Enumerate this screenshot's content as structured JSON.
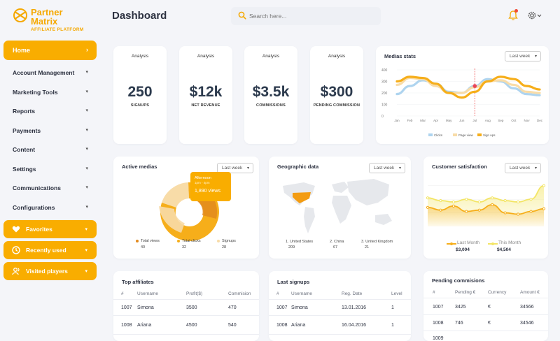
{
  "logo": {
    "line1": "Partner",
    "line2": "Matrix",
    "sub": "AFFILIATE PLATFORM"
  },
  "nav": {
    "home": "Home",
    "items": [
      "Account Management",
      "Marketing Tools",
      "Reports",
      "Payments",
      "Content",
      "Settings",
      "Communications",
      "Configurations"
    ],
    "highlighted": [
      "Favorites",
      "Recently used",
      "Visited players"
    ]
  },
  "header": {
    "title": "Dashboard",
    "search_placeholder": "Search here..."
  },
  "stats": [
    {
      "label": "Analysis",
      "value": "250",
      "sub": "SIGNUPS"
    },
    {
      "label": "Analysis",
      "value": "$12k",
      "sub": "NET REVENUE"
    },
    {
      "label": "Analysis",
      "value": "$3.5k",
      "sub": "COMMISSIONS"
    },
    {
      "label": "Analysis",
      "value": "$300",
      "sub": "PENDING COMMISSION"
    }
  ],
  "medias_stats": {
    "title": "Medias stats",
    "filter": "Last week",
    "chart_data": {
      "type": "line",
      "categories": [
        "Jan",
        "Feb",
        "Mar",
        "Apr",
        "May",
        "Jun",
        "Jul",
        "Aug",
        "Sep",
        "Oct",
        "Nov",
        "Dec"
      ],
      "yticks": [
        0,
        100,
        200,
        300,
        400
      ],
      "ylim": [
        0,
        400
      ],
      "series": [
        {
          "name": "Clicks",
          "color": "#aed4ef",
          "values": [
            190,
            260,
            310,
            280,
            210,
            200,
            260,
            320,
            300,
            240,
            190,
            180
          ]
        },
        {
          "name": "Page view",
          "color": "#f8dca8",
          "values": [
            270,
            330,
            320,
            260,
            200,
            200,
            250,
            300,
            310,
            270,
            210,
            200
          ]
        },
        {
          "name": "Sign ups",
          "color": "#f6ae1a",
          "values": [
            300,
            340,
            330,
            280,
            200,
            160,
            210,
            300,
            340,
            320,
            260,
            230
          ]
        }
      ]
    }
  },
  "active_medias": {
    "title": "Active medias",
    "filter": "Last week",
    "tooltip": {
      "time": "Afternoon",
      "range": "1pm - 4pm",
      "value": "1,890 views"
    },
    "legend": [
      {
        "label": "Total views",
        "value": "40",
        "color": "#e28a1d"
      },
      {
        "label": "Total clicks",
        "value": "32",
        "color": "#f6ae1a"
      },
      {
        "label": "Signups",
        "value": "28",
        "color": "#f8dca8"
      }
    ]
  },
  "geographic": {
    "title": "Geographic data",
    "filter": "Last week",
    "legend": [
      {
        "label": "1. United States",
        "value": "209"
      },
      {
        "label": "2. China",
        "value": "67"
      },
      {
        "label": "3. United Kingdom",
        "value": "21"
      }
    ]
  },
  "satisfaction": {
    "title": "Customer satisfaction",
    "filter": "Last week",
    "last_month_label": "Last Month",
    "last_month_value": "$3,004",
    "this_month_label": "This Month",
    "this_month_value": "$4,504",
    "chart_data": {
      "type": "area",
      "series": [
        {
          "name": "Last Month",
          "color": "#f6ae1a",
          "values": [
            48,
            44,
            50,
            42,
            44,
            52,
            40,
            38,
            42,
            46
          ]
        },
        {
          "name": "This Month",
          "color": "#f3e566",
          "values": [
            62,
            58,
            56,
            60,
            56,
            62,
            58,
            56,
            60,
            80
          ]
        }
      ]
    }
  },
  "top_affiliates": {
    "title": "Top affiliates",
    "columns": [
      "#",
      "Username",
      "Profit($)",
      "Commision"
    ],
    "rows": [
      [
        "1007",
        "Simona",
        "3500",
        "470"
      ],
      [
        "1008",
        "Ariana",
        "4500",
        "540"
      ]
    ]
  },
  "last_signups": {
    "title": "Last signups",
    "columns": [
      "#",
      "Username",
      "Reg. Date",
      "Level"
    ],
    "rows": [
      [
        "1007",
        "Simona",
        "13.01.2016",
        "1"
      ],
      [
        "1008",
        "Ariana",
        "16.04.2016",
        "1"
      ]
    ]
  },
  "pending_commissions": {
    "title": "Pending commisions",
    "columns": [
      "#",
      "Pending €",
      "Currency",
      "Amount €"
    ],
    "rows": [
      [
        "1007",
        "3425",
        "€",
        "34566"
      ],
      [
        "1008",
        "746",
        "€",
        "34546"
      ],
      [
        "1009",
        "",
        "",
        ""
      ]
    ]
  }
}
